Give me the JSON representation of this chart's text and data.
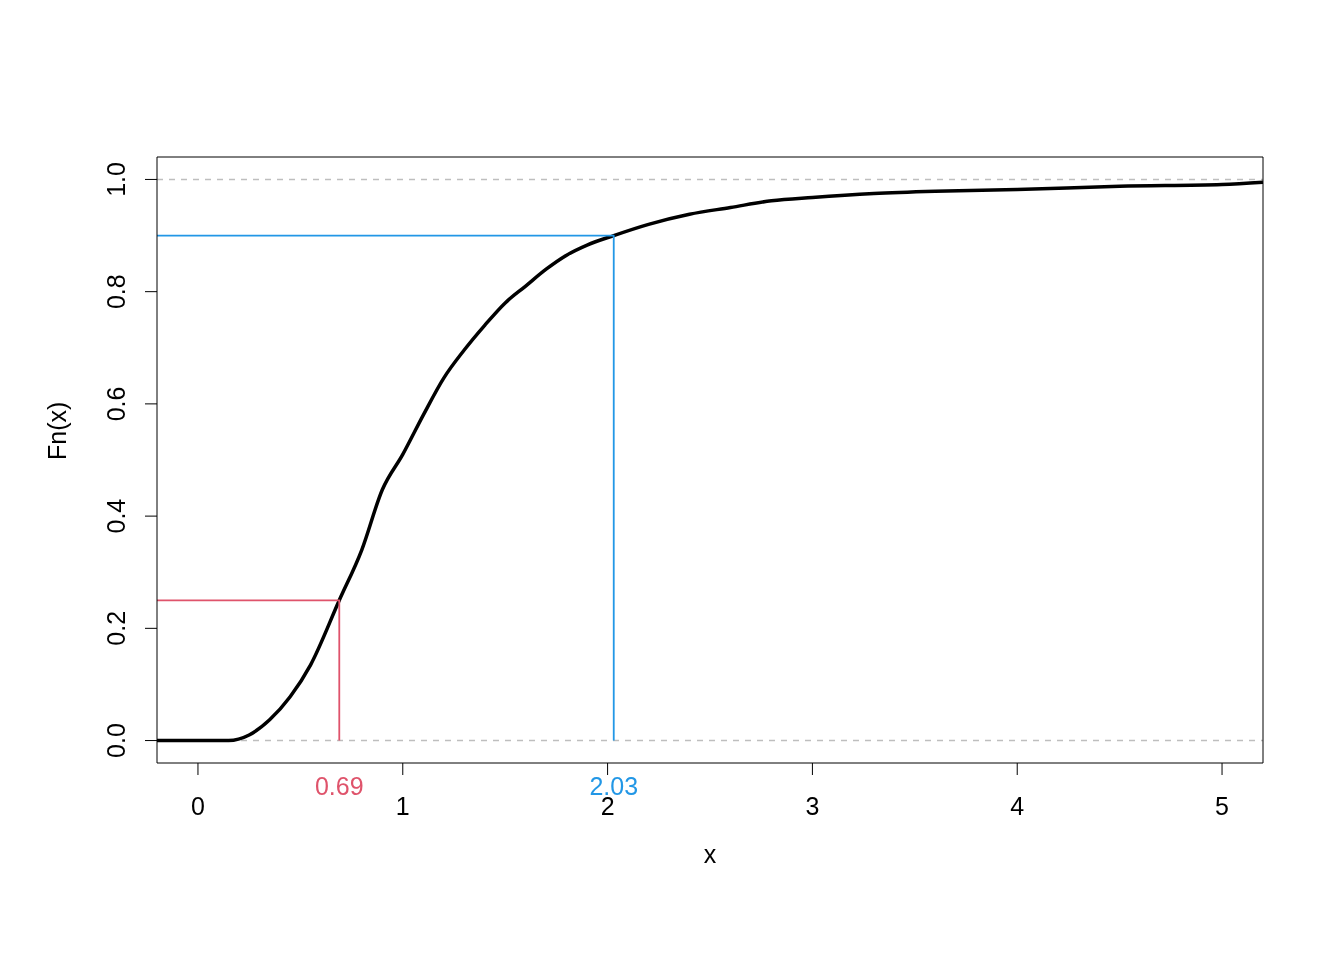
{
  "chart_data": {
    "type": "line",
    "xlabel": "x",
    "ylabel": "Fn(x)",
    "xlim": [
      -0.2,
      5.2
    ],
    "ylim": [
      -0.04,
      1.04
    ],
    "xticks": [
      0,
      1,
      2,
      3,
      4,
      5
    ],
    "yticks": [
      {
        "value": 0,
        "label": "0.0"
      },
      {
        "value": 0.2,
        "label": "0.2"
      },
      {
        "value": 0.4,
        "label": "0.4"
      },
      {
        "value": 0.6,
        "label": "0.6"
      },
      {
        "value": 0.8,
        "label": "0.8"
      },
      {
        "value": 1,
        "label": "1.0"
      }
    ],
    "grid": false,
    "legend": false,
    "marker": "none",
    "line_style": "solid",
    "series": [
      {
        "color": "#000000",
        "x": [
          -0.2,
          0,
          0.15,
          0.25,
          0.35,
          0.45,
          0.55,
          0.69,
          0.8,
          0.9,
          1.0,
          1.1,
          1.2,
          1.3,
          1.4,
          1.5,
          1.6,
          1.7,
          1.8,
          1.9,
          2.03,
          2.2,
          2.4,
          2.6,
          2.8,
          3.0,
          3.3,
          3.6,
          4.0,
          4.5,
          5.0,
          5.2
        ],
        "values": [
          0,
          0,
          0,
          0.01,
          0.037,
          0.078,
          0.135,
          0.25,
          0.34,
          0.447,
          0.51,
          0.58,
          0.646,
          0.696,
          0.74,
          0.78,
          0.81,
          0.84,
          0.865,
          0.883,
          0.9,
          0.92,
          0.938,
          0.95,
          0.962,
          0.968,
          0.975,
          0.979,
          0.982,
          0.988,
          0.991,
          0.995
        ]
      },
      {
        "color": "#df536b",
        "x": [
          -0.2,
          0.69,
          0.69
        ],
        "values": [
          0.25,
          0.25,
          0
        ]
      },
      {
        "color": "#2297e6",
        "x": [
          -0.2,
          2.03,
          2.03
        ],
        "values": [
          0.9,
          0.9,
          0
        ]
      }
    ],
    "ref_lines": [
      {
        "axis": "y",
        "value": 0,
        "color": "#bebebe",
        "line_style": "dashed"
      },
      {
        "axis": "y",
        "value": 1,
        "color": "#bebebe",
        "line_style": "dashed"
      }
    ],
    "annotations": [
      "0.69",
      "2.03"
    ]
  }
}
